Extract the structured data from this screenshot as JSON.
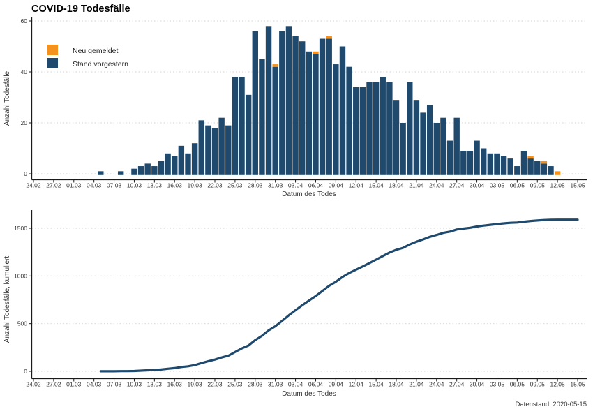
{
  "title": "COVID-19 Todesfälle",
  "datenstand": "Datenstand: 2020-05-15",
  "colors": {
    "navy": "#1f4a6d",
    "orange": "#f5921e",
    "grid": "#dcdcdc",
    "axis": "#1a1a1a"
  },
  "chart_data": [
    {
      "type": "bar",
      "title": "COVID-19 Todesfälle",
      "xlabel": "Datum des Todes",
      "ylabel": "Anzahl Todesfälle",
      "ylim": [
        0,
        60
      ],
      "yticks": [
        0,
        20,
        40,
        60
      ],
      "grid": "dotted-horizontal",
      "legend_position": "top-left-inside",
      "legend": [
        {
          "label": "Neu gemeldet",
          "color": "#f5921e"
        },
        {
          "label": "Stand vorgestern",
          "color": "#1f4a6d"
        }
      ],
      "x_ticks": [
        "24.02",
        "27.02",
        "01.03",
        "04.03",
        "07.03",
        "10.03",
        "13.03",
        "16.03",
        "19.03",
        "22.03",
        "25.03",
        "28.03",
        "31.03",
        "03.04",
        "06.04",
        "09.04",
        "12.04",
        "15.04",
        "18.04",
        "21.04",
        "24.04",
        "27.04",
        "30.04",
        "03.05",
        "06.05",
        "09.05",
        "12.05",
        "15.05"
      ],
      "dates": [
        "05.03",
        "06.03",
        "07.03",
        "08.03",
        "09.03",
        "10.03",
        "11.03",
        "12.03",
        "13.03",
        "14.03",
        "15.03",
        "16.03",
        "17.03",
        "18.03",
        "19.03",
        "20.03",
        "21.03",
        "22.03",
        "23.03",
        "24.03",
        "25.03",
        "26.03",
        "27.03",
        "28.03",
        "29.03",
        "30.03",
        "31.03",
        "01.04",
        "02.04",
        "03.04",
        "04.04",
        "05.04",
        "06.04",
        "07.04",
        "08.04",
        "09.04",
        "10.04",
        "11.04",
        "12.04",
        "13.04",
        "14.04",
        "15.04",
        "16.04",
        "17.04",
        "18.04",
        "19.04",
        "20.04",
        "21.04",
        "22.04",
        "23.04",
        "24.04",
        "25.04",
        "26.04",
        "27.04",
        "28.04",
        "29.04",
        "30.04",
        "01.05",
        "02.05",
        "03.05",
        "04.05",
        "05.05",
        "06.05",
        "07.05",
        "08.05",
        "09.05",
        "10.05",
        "11.05",
        "12.05",
        "13.05",
        "14.05",
        "15.05"
      ],
      "series": [
        {
          "name": "Stand vorgestern",
          "values": [
            1,
            0,
            0,
            1,
            0,
            2,
            3,
            4,
            3,
            5,
            8,
            7,
            11,
            8,
            12,
            21,
            19,
            18,
            22,
            19,
            38,
            38,
            31,
            56,
            45,
            58,
            42,
            56,
            58,
            54,
            52,
            48,
            47,
            53,
            53,
            43,
            50,
            42,
            34,
            34,
            36,
            36,
            38,
            36,
            29,
            20,
            36,
            29,
            24,
            27,
            20,
            22,
            13,
            22,
            9,
            9,
            13,
            10,
            8,
            8,
            7,
            6,
            3,
            9,
            6,
            5,
            4,
            3,
            0,
            0,
            0,
            0
          ]
        },
        {
          "name": "Neu gemeldet",
          "values": [
            0,
            0,
            0,
            0,
            0,
            0,
            0,
            0,
            0,
            0,
            0,
            0,
            0,
            0,
            0,
            0,
            0,
            0,
            0,
            0,
            0,
            0,
            0,
            0,
            0,
            0,
            1,
            0,
            0,
            0,
            0,
            0,
            1,
            0,
            1,
            0,
            0,
            0,
            0,
            0,
            0,
            0,
            0,
            0,
            0,
            0,
            0,
            0,
            0,
            0,
            0,
            0,
            0,
            0,
            0,
            0,
            0,
            0,
            0,
            0,
            0,
            0,
            0,
            0,
            1,
            0,
            1,
            0,
            1,
            0,
            0,
            0
          ]
        }
      ]
    },
    {
      "type": "line",
      "xlabel": "Datum des Todes",
      "ylabel": "Anzahl Todesfälle, kumuliert",
      "ylim": [
        0,
        1600
      ],
      "yticks": [
        0,
        500,
        1000,
        1500
      ],
      "grid": "dotted-horizontal",
      "color": "#1f4a6d",
      "x_ticks": [
        "24.02",
        "27.02",
        "01.03",
        "04.03",
        "07.03",
        "10.03",
        "13.03",
        "16.03",
        "19.03",
        "22.03",
        "25.03",
        "28.03",
        "31.03",
        "03.04",
        "06.04",
        "09.04",
        "12.04",
        "15.04",
        "18.04",
        "21.04",
        "24.04",
        "27.04",
        "30.04",
        "03.05",
        "06.05",
        "09.05",
        "12.05",
        "15.05"
      ],
      "dates": [
        "05.03",
        "06.03",
        "07.03",
        "08.03",
        "09.03",
        "10.03",
        "11.03",
        "12.03",
        "13.03",
        "14.03",
        "15.03",
        "16.03",
        "17.03",
        "18.03",
        "19.03",
        "20.03",
        "21.03",
        "22.03",
        "23.03",
        "24.03",
        "25.03",
        "26.03",
        "27.03",
        "28.03",
        "29.03",
        "30.03",
        "31.03",
        "01.04",
        "02.04",
        "03.04",
        "04.04",
        "05.04",
        "06.04",
        "07.04",
        "08.04",
        "09.04",
        "10.04",
        "11.04",
        "12.04",
        "13.04",
        "14.04",
        "15.04",
        "16.04",
        "17.04",
        "18.04",
        "19.04",
        "20.04",
        "21.04",
        "22.04",
        "23.04",
        "24.04",
        "25.04",
        "26.04",
        "27.04",
        "28.04",
        "29.04",
        "30.04",
        "01.05",
        "02.05",
        "03.05",
        "04.05",
        "05.05",
        "06.05",
        "07.05",
        "08.05",
        "09.05",
        "10.05",
        "11.05",
        "12.05",
        "13.05",
        "14.05",
        "15.05"
      ],
      "values": [
        1,
        1,
        1,
        2,
        2,
        4,
        7,
        11,
        14,
        19,
        27,
        34,
        45,
        53,
        65,
        86,
        105,
        123,
        145,
        164,
        202,
        240,
        271,
        327,
        372,
        430,
        473,
        529,
        587,
        641,
        693,
        741,
        789,
        842,
        896,
        939,
        989,
        1031,
        1065,
        1099,
        1135,
        1171,
        1209,
        1245,
        1274,
        1294,
        1330,
        1359,
        1383,
        1410,
        1430,
        1452,
        1465,
        1487,
        1496,
        1505,
        1518,
        1528,
        1536,
        1544,
        1551,
        1557,
        1560,
        1569,
        1576,
        1581,
        1586,
        1589,
        1590,
        1590,
        1590,
        1590
      ],
      "footnote": "Datenstand: 2020-05-15"
    }
  ]
}
